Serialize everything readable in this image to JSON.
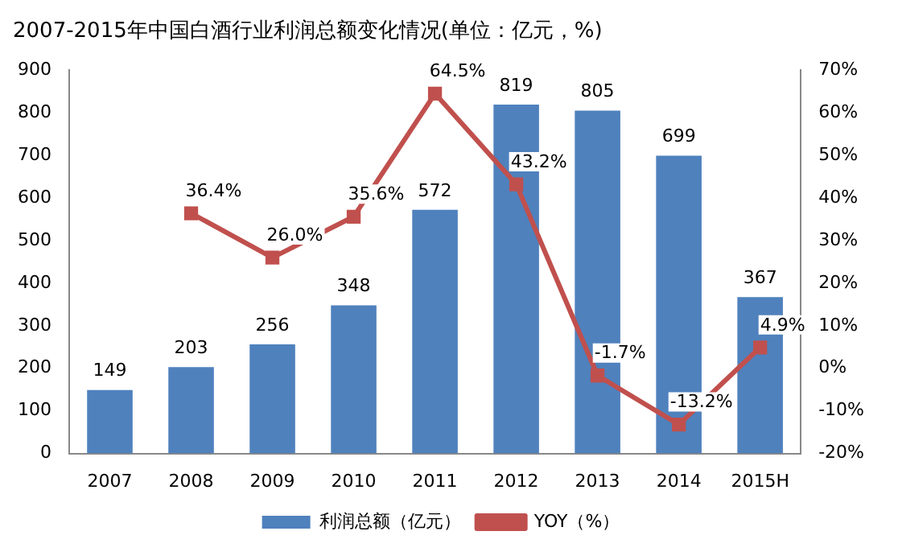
{
  "chart_data": {
    "type": "bar",
    "title": "2007-2015年中国白酒行业利润总额变化情况(单位：亿元，%)",
    "categories": [
      "2007",
      "2008",
      "2009",
      "2010",
      "2011",
      "2012",
      "2013",
      "2014",
      "2015H"
    ],
    "series": [
      {
        "name": "利润总额（亿元）",
        "color": "#4f81bd",
        "values": [
          149,
          203,
          256,
          348,
          572,
          819,
          805,
          699,
          367
        ],
        "value_labels": [
          "149",
          "203",
          "256",
          "348",
          "572",
          "819",
          "805",
          "699",
          "367"
        ]
      },
      {
        "name": "YOY（%）",
        "type": "line",
        "axis": "y2",
        "color": "#c0504d",
        "marker": "square",
        "values": [
          null,
          36.4,
          26.0,
          35.6,
          64.5,
          43.2,
          -1.7,
          -13.2,
          4.9
        ],
        "value_labels": [
          null,
          "36.4%",
          "26.0%",
          "35.6%",
          "64.5%",
          "43.2%",
          "-1.7%",
          "-13.2%",
          "4.9%"
        ]
      }
    ],
    "ylim": [
      0,
      900
    ],
    "yticks": [
      0,
      100,
      200,
      300,
      400,
      500,
      600,
      700,
      800,
      900
    ],
    "y2lim": [
      -20,
      70
    ],
    "y2ticks": [
      {
        "value": -20,
        "label": "-20%"
      },
      {
        "value": -10,
        "label": "-10%"
      },
      {
        "value": 0,
        "label": "0%"
      },
      {
        "value": 10,
        "label": "10%"
      },
      {
        "value": 20,
        "label": "20%"
      },
      {
        "value": 30,
        "label": "30%"
      },
      {
        "value": 40,
        "label": "40%"
      },
      {
        "value": 50,
        "label": "50%"
      },
      {
        "value": 60,
        "label": "60%"
      },
      {
        "value": 70,
        "label": "70%"
      }
    ],
    "grid": false,
    "legend": "bottom"
  }
}
